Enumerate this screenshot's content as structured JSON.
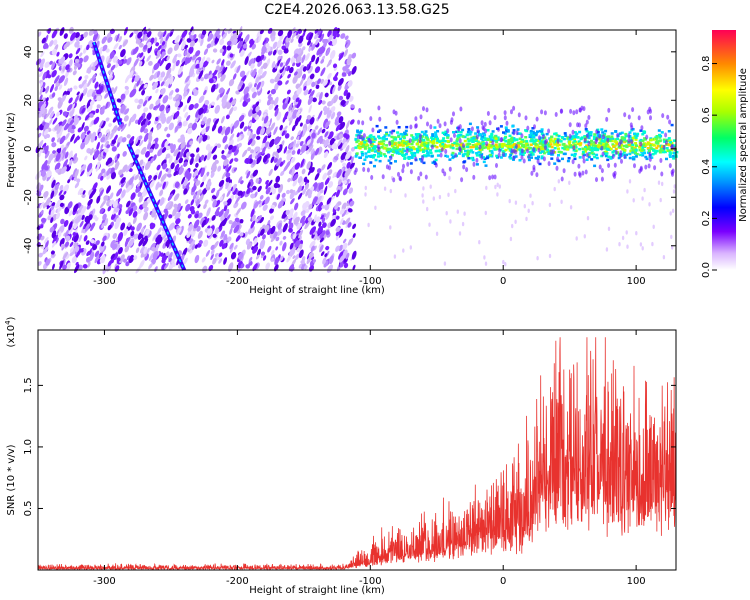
{
  "title": "C2E4.2026.063.13.58.G25",
  "chart_data": [
    {
      "type": "heatmap",
      "name": "spectrogram",
      "xlabel": "Height of straight line (km)",
      "ylabel": "Frequency (Hz)",
      "xlim": [
        -350,
        130
      ],
      "ylim": [
        -50,
        49
      ],
      "x_ticks": [
        -300,
        -200,
        -100,
        0,
        100
      ],
      "y_ticks": [
        40,
        20,
        0,
        -20,
        -40
      ],
      "noise_region": {
        "x_from": -350,
        "x_to": -112
      },
      "band_region": {
        "x_from": -112,
        "x_to": 130,
        "center_hz": 2,
        "half_width_hz": 6
      },
      "streaks": [
        {
          "x_start": -308,
          "f_start": 44,
          "x_end": -288,
          "f_end": 10
        },
        {
          "x_start": -282,
          "f_start": 2,
          "x_end": -240,
          "f_end": -50
        }
      ],
      "colorbar": {
        "label": "Normalized spectral amplitude",
        "range": [
          0,
          0.93
        ],
        "ticks": [
          0.0,
          0.2,
          0.4,
          0.6,
          0.8
        ]
      }
    },
    {
      "type": "line",
      "name": "snr",
      "xlabel": "Height of straight line (km)",
      "ylabel": "SNR (10 * v/v)",
      "y_scale_label": "(x10",
      "y_scale_exp": "4",
      "xlim": [
        -350,
        130
      ],
      "ylim": [
        0,
        1.95
      ],
      "x_ticks": [
        -300,
        -200,
        -100,
        0,
        100
      ],
      "y_ticks": [
        0.5,
        1.0,
        1.5
      ],
      "color": "#e8322e",
      "envelope": [
        {
          "x": -350,
          "base": 0.01,
          "amp": 0.03
        },
        {
          "x": -120,
          "base": 0.01,
          "amp": 0.03
        },
        {
          "x": -100,
          "base": 0.06,
          "amp": 0.16
        },
        {
          "x": -80,
          "base": 0.1,
          "amp": 0.22
        },
        {
          "x": -60,
          "base": 0.13,
          "amp": 0.26
        },
        {
          "x": -40,
          "base": 0.17,
          "amp": 0.3
        },
        {
          "x": -20,
          "base": 0.22,
          "amp": 0.38
        },
        {
          "x": 0,
          "base": 0.28,
          "amp": 0.45
        },
        {
          "x": 15,
          "base": 0.33,
          "amp": 0.55
        },
        {
          "x": 25,
          "base": 0.55,
          "amp": 0.8
        },
        {
          "x": 40,
          "base": 0.7,
          "amp": 0.95
        },
        {
          "x": 55,
          "base": 0.75,
          "amp": 1.05
        },
        {
          "x": 70,
          "base": 0.68,
          "amp": 0.95
        },
        {
          "x": 90,
          "base": 0.62,
          "amp": 0.85
        },
        {
          "x": 110,
          "base": 0.6,
          "amp": 0.82
        },
        {
          "x": 130,
          "base": 0.62,
          "amp": 0.9
        }
      ]
    }
  ]
}
